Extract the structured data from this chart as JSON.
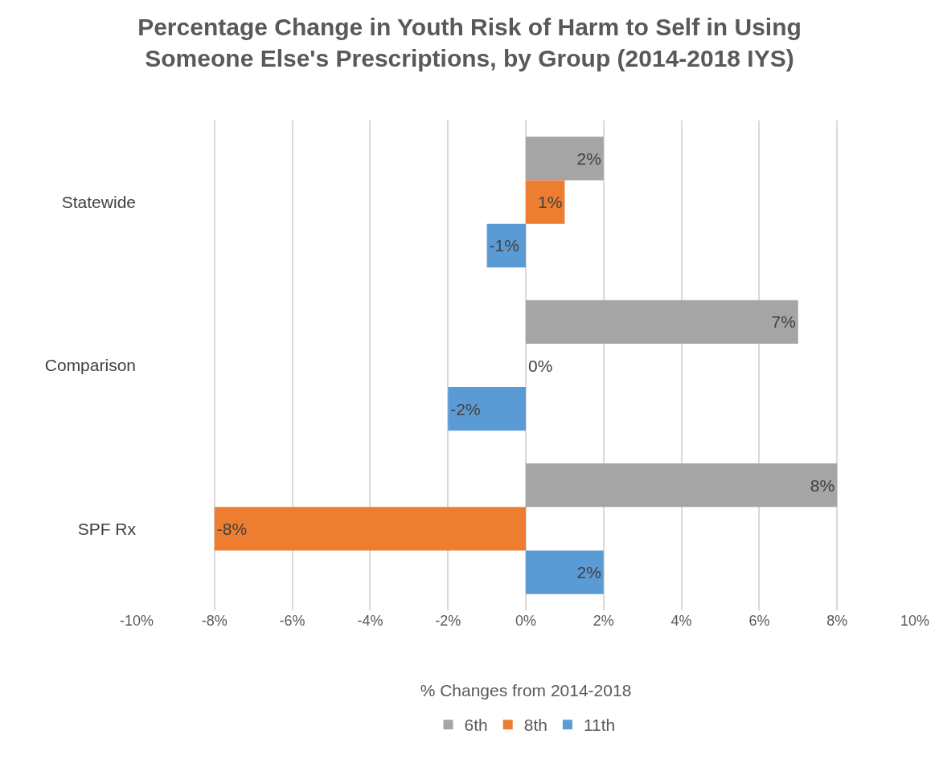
{
  "chart_data": {
    "type": "bar",
    "orientation": "horizontal",
    "title": "Percentage Change in Youth Risk of Harm to Self in Using Someone Else's Prescriptions, by Group (2014-2018 IYS)",
    "xlabel": "% Changes from 2014-2018",
    "categories": [
      "Statewide",
      "Comparison",
      "SPF Rx"
    ],
    "series": [
      {
        "name": "6th",
        "color": "#a5a5a5",
        "values": [
          2,
          7,
          8
        ],
        "value_labels": [
          "2%",
          "7%",
          "8%"
        ]
      },
      {
        "name": "8th",
        "color": "#ed7d31",
        "values": [
          1,
          0,
          -8
        ],
        "value_labels": [
          "1%",
          "0%",
          "-8%"
        ]
      },
      {
        "name": "11th",
        "color": "#5b9bd5",
        "values": [
          -1,
          -2,
          2
        ],
        "value_labels": [
          "-1%",
          "-2%",
          "2%"
        ]
      }
    ],
    "xlim": [
      -10,
      10
    ],
    "xticks": [
      {
        "value": -10,
        "label": "-10%"
      },
      {
        "value": -8,
        "label": "-8%"
      },
      {
        "value": -6,
        "label": "-6%"
      },
      {
        "value": -4,
        "label": "-4%"
      },
      {
        "value": -2,
        "label": "-2%"
      },
      {
        "value": 0,
        "label": "0%"
      },
      {
        "value": 2,
        "label": "2%"
      },
      {
        "value": 4,
        "label": "4%"
      },
      {
        "value": 6,
        "label": "6%"
      },
      {
        "value": 8,
        "label": "8%"
      },
      {
        "value": 10,
        "label": "10%"
      }
    ],
    "grid": "x",
    "legend": "bottom"
  }
}
